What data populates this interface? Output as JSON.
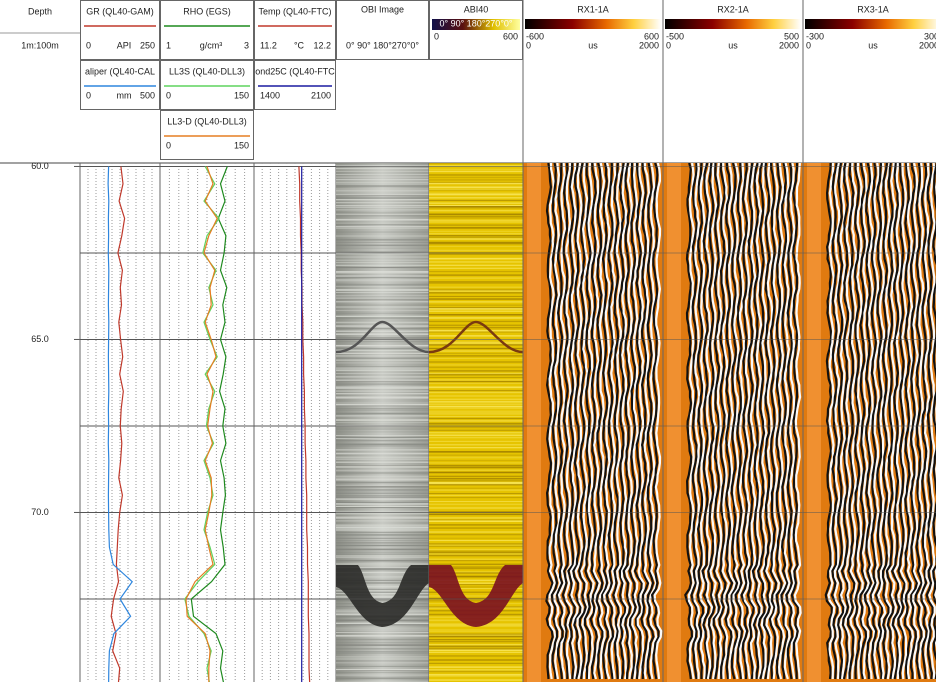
{
  "depth_header": {
    "title": "Depth",
    "scale": "1m:100m"
  },
  "depth_range": [
    59.9,
    74.9
  ],
  "depth_labels": [
    {
      "value": 60,
      "label": "60.0"
    },
    {
      "value": 65,
      "label": "65.0"
    },
    {
      "value": 70,
      "label": "70.0"
    }
  ],
  "gridlines": [
    60,
    62.5,
    65,
    67.5,
    70,
    72.5,
    75
  ],
  "depths": [
    60,
    60.5,
    61,
    61.5,
    62,
    62.5,
    63,
    63.5,
    64,
    64.5,
    65,
    65.5,
    66,
    66.5,
    67,
    67.5,
    68,
    68.5,
    69,
    69.5,
    70,
    70.5,
    71,
    71.5,
    72,
    72.5,
    73,
    73.5,
    74,
    74.5,
    75
  ],
  "tracks": [
    {
      "curves": [
        {
          "name": "GR (QL40-GAM)",
          "color": "#c0392b",
          "min": 0,
          "unit": "API",
          "max": 250,
          "values": [
            128,
            135,
            122,
            140,
            131,
            118,
            133,
            126,
            130,
            121,
            127,
            134,
            124,
            136,
            129,
            126,
            131,
            127,
            121,
            133,
            124,
            119,
            116,
            113,
            120,
            104,
            96,
            112,
            101,
            124,
            119
          ]
        },
        {
          "name": "aliper (QL40-CAL",
          "color": "#2e86de",
          "min": 0,
          "unit": "mm",
          "max": 500,
          "values": [
            175,
            172,
            176,
            174,
            175,
            173,
            176,
            175,
            174,
            176,
            175,
            174,
            175,
            176,
            174,
            175,
            173,
            176,
            175,
            174,
            175,
            176,
            180,
            205,
            330,
            250,
            320,
            210,
            180,
            176,
            175
          ]
        }
      ]
    },
    {
      "curves": [
        {
          "name": "RHO (EGS)",
          "color": "#1e8a1e",
          "min": 1,
          "unit": "g/cm³",
          "max": 3,
          "values": [
            2.45,
            2.3,
            2.4,
            2.25,
            2.42,
            2.38,
            2.3,
            2.44,
            2.35,
            2.4,
            2.3,
            2.42,
            2.36,
            2.28,
            2.4,
            2.35,
            2.42,
            2.3,
            2.38,
            2.41,
            2.35,
            2.3,
            2.36,
            2.4,
            2.1,
            1.65,
            1.7,
            2.2,
            2.35,
            2.3,
            2.38
          ]
        },
        {
          "name": "LL3S (QL40-DLL3)",
          "color": "#5fd35f",
          "min": 0,
          "max": 150,
          "values": [
            72,
            88,
            70,
            95,
            75,
            68,
            90,
            78,
            85,
            70,
            80,
            92,
            72,
            88,
            78,
            74,
            86,
            70,
            80,
            85,
            76,
            70,
            80,
            88,
            60,
            38,
            45,
            70,
            82,
            75,
            80
          ]
        },
        {
          "name": "LL3-D (QL40-DLL3)",
          "color": "#e67e22",
          "min": 0,
          "max": 150,
          "values": [
            75,
            85,
            72,
            92,
            78,
            70,
            88,
            80,
            82,
            72,
            82,
            90,
            75,
            85,
            80,
            76,
            84,
            72,
            82,
            83,
            78,
            72,
            78,
            85,
            55,
            40,
            42,
            72,
            80,
            78,
            78
          ]
        }
      ]
    },
    {
      "curves": [
        {
          "name": "Temp (QL40-FTC)",
          "color": "#c0392b",
          "min": 11.2,
          "unit": "°C",
          "max": 12.2,
          "values": [
            11.75,
            11.76,
            11.76,
            11.77,
            11.77,
            11.78,
            11.78,
            11.79,
            11.79,
            11.8,
            11.8,
            11.81,
            11.81,
            11.82,
            11.82,
            11.83,
            11.83,
            11.84,
            11.84,
            11.85,
            11.85,
            11.85,
            11.86,
            11.86,
            11.87,
            11.87,
            11.87,
            11.88,
            11.88,
            11.88,
            11.89
          ]
        },
        {
          "name": "ond25C (QL40-FTC",
          "color": "#1a1aa0",
          "min": 1400,
          "max": 2100,
          "values": [
            1810,
            1810,
            1810,
            1810,
            1810,
            1810,
            1810,
            1810,
            1810,
            1810,
            1810,
            1810,
            1810,
            1810,
            1810,
            1810,
            1810,
            1810,
            1810,
            1810,
            1810,
            1810,
            1810,
            1810,
            1810,
            1810,
            1810,
            1810,
            1810,
            1810,
            1810
          ]
        }
      ]
    }
  ],
  "image_tracks": [
    {
      "title": "OBI Image",
      "angles": "0° 90° 180°270°0°"
    },
    {
      "title": "ABI40",
      "angles": "0° 90° 180°270°0°",
      "min": 0,
      "max": 600
    }
  ],
  "wave_tracks": [
    {
      "title": "RX1-1A",
      "amp_min": -600,
      "amp_max": 600,
      "time_min": 0,
      "unit": "us",
      "time_max": 2000
    },
    {
      "title": "RX2-1A",
      "amp_min": -500,
      "amp_max": 500,
      "time_min": 0,
      "unit": "us",
      "time_max": 2000
    },
    {
      "title": "RX3-1A",
      "amp_min": -300,
      "amp_max": 300,
      "time_min": 0,
      "unit": "us",
      "time_max": 2000
    }
  ]
}
